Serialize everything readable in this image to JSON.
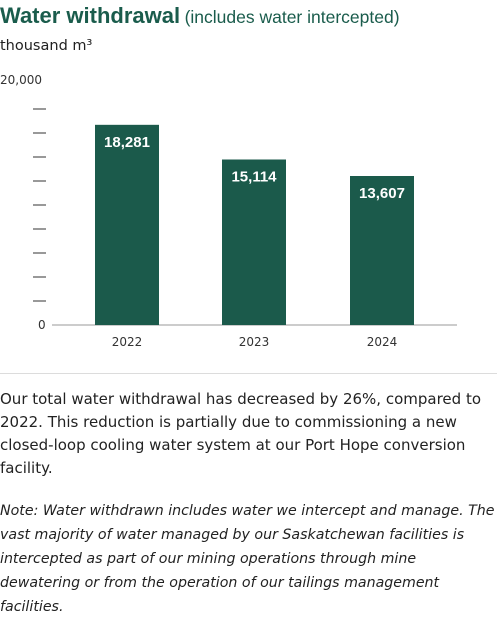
{
  "title": {
    "main": "Water withdrawal",
    "sub": "(includes water intercepted)"
  },
  "unit_label": "thousand m³",
  "colors": {
    "bar": "#1b5a4b",
    "title": "#1a5c4c",
    "bar_label": "#ffffff",
    "axis": "#333333"
  },
  "chart_data": {
    "type": "bar",
    "categories": [
      "2022",
      "2023",
      "2024"
    ],
    "values": [
      18281,
      15114,
      13607
    ],
    "value_labels": [
      "18,281",
      "15,114",
      "13,607"
    ],
    "ylim": [
      0,
      20000
    ],
    "y_tick_labels": [
      "0",
      "20,000"
    ],
    "y_minor_ticks": 9,
    "title": "Water withdrawal (includes water intercepted)",
    "xlabel": "",
    "ylabel": "thousand m³",
    "grid": false
  },
  "text": {
    "summary": "Our total water withdrawal has decreased by 26%, compared to 2022. This reduction is partially due to commissioning a new closed-loop cooling water system at our Port Hope conversion facility.",
    "note": "Note: Water withdrawn includes water we intercept and manage. The vast majority of water managed by our Saskatchewan facilities is intercepted as part of our mining operations through mine dewatering or from the operation of our tailings management facilities."
  }
}
